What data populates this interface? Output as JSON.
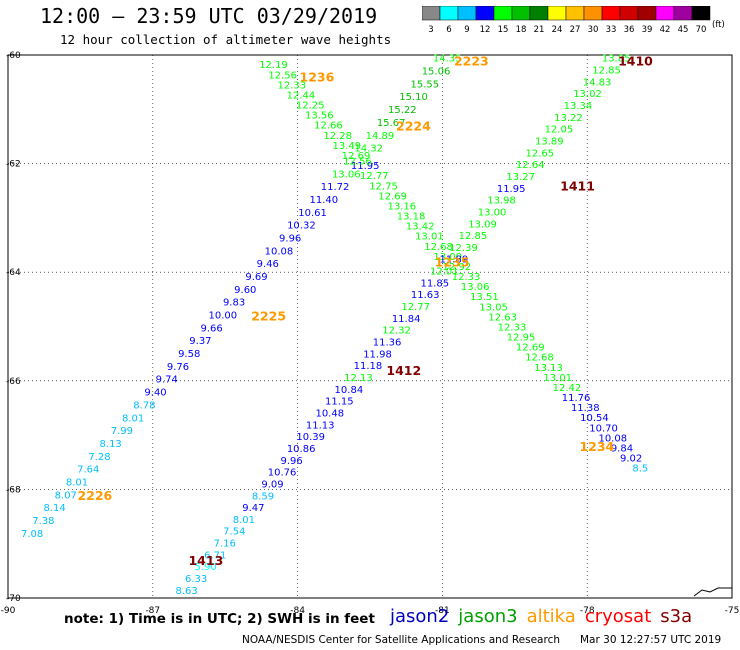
{
  "title": "12:00 – 23:59 UTC 03/29/2019",
  "subtitle": "12 hour collection of altimeter wave heights",
  "colorbar": {
    "unit": "(ft)",
    "ticks": [
      "3",
      "6",
      "9",
      "12",
      "15",
      "18",
      "21",
      "24",
      "27",
      "30",
      "33",
      "36",
      "39",
      "42",
      "45",
      "70"
    ],
    "colors": [
      "#888888",
      "#00ffff",
      "#00bfff",
      "#0000ff",
      "#00ff00",
      "#00c000",
      "#008000",
      "#ffff00",
      "#ffc000",
      "#ff9000",
      "#ff0000",
      "#d00000",
      "#a00000",
      "#ff00ff",
      "#a000a0",
      "#000000"
    ]
  },
  "note": "note: 1) Time is in UTC; 2) SWH is in feet",
  "legend": [
    {
      "label": "jason2",
      "color": "#0000c0"
    },
    {
      "label": "jason3",
      "color": "#00a000"
    },
    {
      "label": "altika",
      "color": "#ff9900"
    },
    {
      "label": "cryosat",
      "color": "#ff0000"
    },
    {
      "label": "s3a",
      "color": "#800000"
    }
  ],
  "credit": "NOAA/NESDIS Center for Satellite Applications and Research",
  "timestamp": "Mar 30 12:27:57 UTC 2019",
  "chart_data": {
    "type": "scatter",
    "xlim": [
      -90,
      -75
    ],
    "ylim": [
      -70,
      -60
    ],
    "x_ticks": [
      -90,
      -87,
      -84,
      -81,
      -78,
      -75
    ],
    "y_ticks": [
      -60,
      -62,
      -64,
      -66,
      -68,
      -70
    ],
    "x_tick_labels": [
      "-90",
      "-87",
      "-84",
      "-81",
      "-78",
      "-75"
    ],
    "y_tick_labels": [
      "-60",
      "-62",
      "-64",
      "-66",
      "-68",
      "-70"
    ],
    "grid": true,
    "time_labels": [
      {
        "text": "1236",
        "x": -83.6,
        "y": -60.4,
        "color": "#ff9900"
      },
      {
        "text": "2223",
        "x": -80.4,
        "y": -60.1,
        "color": "#ff9900"
      },
      {
        "text": "1410",
        "x": -77.0,
        "y": -60.1,
        "color": "#800000"
      },
      {
        "text": "2224",
        "x": -81.6,
        "y": -61.3,
        "color": "#ff9900"
      },
      {
        "text": "1411",
        "x": -78.2,
        "y": -62.4,
        "color": "#800000"
      },
      {
        "text": "1235",
        "x": -80.8,
        "y": -63.8,
        "color": "#ff9900"
      },
      {
        "text": "2225",
        "x": -84.6,
        "y": -64.8,
        "color": "#ff9900"
      },
      {
        "text": "1412",
        "x": -81.8,
        "y": -65.8,
        "color": "#800000"
      },
      {
        "text": "1234",
        "x": -77.8,
        "y": -67.2,
        "color": "#ff9900"
      },
      {
        "text": "2226",
        "x": -88.2,
        "y": -68.1,
        "color": "#ff9900"
      },
      {
        "text": "1413",
        "x": -85.9,
        "y": -69.3,
        "color": "#800000"
      }
    ],
    "tracks": [
      {
        "start": [
          -84.5,
          -60.17
        ],
        "end": [
          -76.9,
          -67.6
        ],
        "values": [
          {
            "v": "12.19",
            "c": "#00ff00"
          },
          {
            "v": "12.56",
            "c": "#00ff00"
          },
          {
            "v": "12.33",
            "c": "#00ff00"
          },
          {
            "v": "12.44",
            "c": "#00ff00"
          },
          {
            "v": "12.25",
            "c": "#00ff00"
          },
          {
            "v": "13.56",
            "c": "#00ff00"
          },
          {
            "v": "12.66",
            "c": "#00ff00"
          },
          {
            "v": "12.28",
            "c": "#00ff00"
          },
          {
            "v": "13.49",
            "c": "#00ff00"
          },
          {
            "v": "12.69",
            "c": "#00ff00"
          },
          {
            "v": "11.95",
            "c": "#0000ff"
          },
          {
            "v": "12.77",
            "c": "#00ff00"
          },
          {
            "v": "12.75",
            "c": "#00ff00"
          },
          {
            "v": "12.69",
            "c": "#00ff00"
          },
          {
            "v": "13.16",
            "c": "#00ff00"
          },
          {
            "v": "13.18",
            "c": "#00ff00"
          },
          {
            "v": "13.42",
            "c": "#00ff00"
          },
          {
            "v": "13.01",
            "c": "#00ff00"
          },
          {
            "v": "12.68",
            "c": "#00ff00"
          },
          {
            "v": "13.00",
            "c": "#00ff00"
          },
          {
            "v": "12.92",
            "c": "#00ff00"
          },
          {
            "v": "12.33",
            "c": "#00ff00"
          },
          {
            "v": "13.06",
            "c": "#00ff00"
          },
          {
            "v": "13.51",
            "c": "#00ff00"
          },
          {
            "v": "13.05",
            "c": "#00ff00"
          },
          {
            "v": "12.63",
            "c": "#00ff00"
          },
          {
            "v": "12.33",
            "c": "#00ff00"
          },
          {
            "v": "12.95",
            "c": "#00ff00"
          },
          {
            "v": "12.69",
            "c": "#00ff00"
          },
          {
            "v": "12.68",
            "c": "#00ff00"
          },
          {
            "v": "13.13",
            "c": "#00ff00"
          },
          {
            "v": "13.01",
            "c": "#00ff00"
          },
          {
            "v": "12.42",
            "c": "#00ff00"
          },
          {
            "v": "11.76",
            "c": "#0000ff"
          },
          {
            "v": "11.38",
            "c": "#0000ff"
          },
          {
            "v": "10.54",
            "c": "#0000ff"
          },
          {
            "v": "10.70",
            "c": "#0000ff"
          },
          {
            "v": "10.08",
            "c": "#0000ff"
          },
          {
            "v": "9.84",
            "c": "#0000ff"
          },
          {
            "v": "9.02",
            "c": "#0000ff"
          },
          {
            "v": "8.5",
            "c": "#00bfff"
          }
        ]
      },
      {
        "start": [
          -80.9,
          -60.05
        ],
        "end": [
          -89.5,
          -68.8
        ],
        "values": [
          {
            "v": "14.35",
            "c": "#00ff00"
          },
          {
            "v": "15.06",
            "c": "#00c000"
          },
          {
            "v": "15.55",
            "c": "#00c000"
          },
          {
            "v": "15.10",
            "c": "#00c000"
          },
          {
            "v": "15.22",
            "c": "#00c000"
          },
          {
            "v": "15.67",
            "c": "#00c000"
          },
          {
            "v": "14.89",
            "c": "#00ff00"
          },
          {
            "v": "14.32",
            "c": "#00ff00"
          },
          {
            "v": "12.56",
            "c": "#00ff00"
          },
          {
            "v": "13.06",
            "c": "#00ff00"
          },
          {
            "v": "11.72",
            "c": "#0000ff"
          },
          {
            "v": "11.40",
            "c": "#0000ff"
          },
          {
            "v": "10.61",
            "c": "#0000ff"
          },
          {
            "v": "10.32",
            "c": "#0000ff"
          },
          {
            "v": "9.96",
            "c": "#0000ff"
          },
          {
            "v": "10.08",
            "c": "#0000ff"
          },
          {
            "v": "9.46",
            "c": "#0000ff"
          },
          {
            "v": "9.69",
            "c": "#0000ff"
          },
          {
            "v": "9.60",
            "c": "#0000ff"
          },
          {
            "v": "9.83",
            "c": "#0000ff"
          },
          {
            "v": "10.00",
            "c": "#0000ff"
          },
          {
            "v": "9.66",
            "c": "#0000ff"
          },
          {
            "v": "9.37",
            "c": "#0000ff"
          },
          {
            "v": "9.58",
            "c": "#0000ff"
          },
          {
            "v": "9.76",
            "c": "#0000ff"
          },
          {
            "v": "9.74",
            "c": "#0000ff"
          },
          {
            "v": "9.40",
            "c": "#0000ff"
          },
          {
            "v": "8.78",
            "c": "#00bfff"
          },
          {
            "v": "8.01",
            "c": "#00bfff"
          },
          {
            "v": "7.99",
            "c": "#00bfff"
          },
          {
            "v": "8.13",
            "c": "#00bfff"
          },
          {
            "v": "7.28",
            "c": "#00bfff"
          },
          {
            "v": "7.64",
            "c": "#00bfff"
          },
          {
            "v": "8.01",
            "c": "#00bfff"
          },
          {
            "v": "8.07",
            "c": "#00bfff"
          },
          {
            "v": "8.14",
            "c": "#00bfff"
          },
          {
            "v": "7.38",
            "c": "#00bfff"
          },
          {
            "v": "7.08",
            "c": "#00bfff"
          }
        ]
      },
      {
        "start": [
          -77.4,
          -60.05
        ],
        "end": [
          -86.3,
          -69.85
        ],
        "values": [
          {
            "v": "13.85",
            "c": "#00ff00"
          },
          {
            "v": "12.85",
            "c": "#00ff00"
          },
          {
            "v": "14.83",
            "c": "#00ff00"
          },
          {
            "v": "13.02",
            "c": "#00ff00"
          },
          {
            "v": "13.34",
            "c": "#00ff00"
          },
          {
            "v": "13.22",
            "c": "#00ff00"
          },
          {
            "v": "12.05",
            "c": "#00ff00"
          },
          {
            "v": "13.89",
            "c": "#00ff00"
          },
          {
            "v": "12.65",
            "c": "#00ff00"
          },
          {
            "v": "12.64",
            "c": "#00ff00"
          },
          {
            "v": "13.27",
            "c": "#00ff00"
          },
          {
            "v": "11.95",
            "c": "#0000ff"
          },
          {
            "v": "13.98",
            "c": "#00ff00"
          },
          {
            "v": "13.00",
            "c": "#00ff00"
          },
          {
            "v": "13.09",
            "c": "#00ff00"
          },
          {
            "v": "12.85",
            "c": "#00ff00"
          },
          {
            "v": "12.39",
            "c": "#00ff00"
          },
          {
            "v": "11.89",
            "c": "#0000ff"
          },
          {
            "v": "12.01",
            "c": "#00ff00"
          },
          {
            "v": "11.85",
            "c": "#0000ff"
          },
          {
            "v": "11.63",
            "c": "#0000ff"
          },
          {
            "v": "12.77",
            "c": "#00ff00"
          },
          {
            "v": "11.84",
            "c": "#0000ff"
          },
          {
            "v": "12.32",
            "c": "#00ff00"
          },
          {
            "v": "11.36",
            "c": "#0000ff"
          },
          {
            "v": "11.98",
            "c": "#0000ff"
          },
          {
            "v": "11.18",
            "c": "#0000ff"
          },
          {
            "v": "12.13",
            "c": "#00ff00"
          },
          {
            "v": "10.84",
            "c": "#0000ff"
          },
          {
            "v": "11.15",
            "c": "#0000ff"
          },
          {
            "v": "10.48",
            "c": "#0000ff"
          },
          {
            "v": "11.13",
            "c": "#0000ff"
          },
          {
            "v": "10.39",
            "c": "#0000ff"
          },
          {
            "v": "10.86",
            "c": "#0000ff"
          },
          {
            "v": "9.96",
            "c": "#0000ff"
          },
          {
            "v": "10.76",
            "c": "#0000ff"
          },
          {
            "v": "9.09",
            "c": "#0000ff"
          },
          {
            "v": "8.59",
            "c": "#00bfff"
          },
          {
            "v": "9.47",
            "c": "#0000ff"
          },
          {
            "v": "8.01",
            "c": "#00bfff"
          },
          {
            "v": "7.54",
            "c": "#00bfff"
          },
          {
            "v": "7.16",
            "c": "#00bfff"
          },
          {
            "v": "6.71",
            "c": "#00bfff"
          },
          {
            "v": "5.90",
            "c": "#00ffff"
          },
          {
            "v": "6.33",
            "c": "#00bfff"
          },
          {
            "v": "8.63",
            "c": "#00bfff"
          }
        ]
      }
    ]
  }
}
